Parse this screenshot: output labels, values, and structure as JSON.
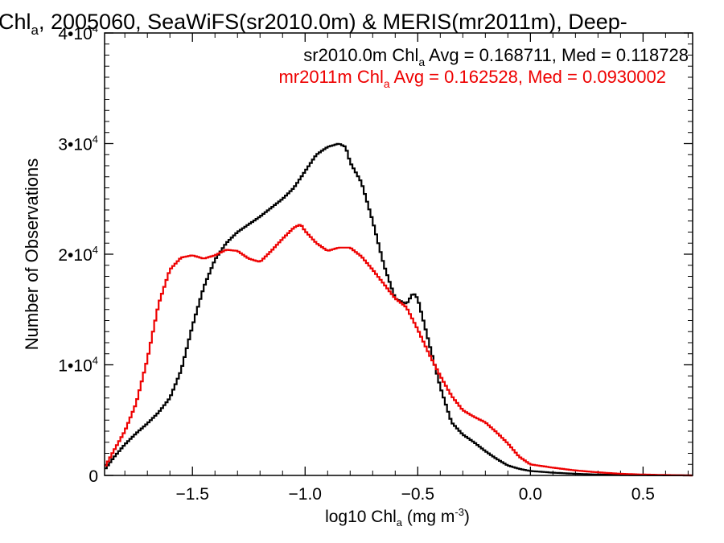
{
  "chart_data": {
    "type": "line",
    "title": {
      "prefix": "Chl",
      "sub": "a",
      "suffix": ", 2005060, SeaWiFS(sr2010.0m) & MERIS(mr2011m), Deep-"
    },
    "xlabel": {
      "prefix": "log10 Chl",
      "sub": "a",
      "mid": " (mg m",
      "sup": "-3",
      "suffix": ")"
    },
    "ylabel": "Number of Observations",
    "xlim": [
      -1.89,
      0.72
    ],
    "ylim": [
      0,
      40000
    ],
    "xticks": [
      {
        "value": -1.5,
        "label": "−1.5"
      },
      {
        "value": -1.0,
        "label": "−1.0"
      },
      {
        "value": -0.5,
        "label": "−0.5"
      },
      {
        "value": 0.0,
        "label": "0.0"
      },
      {
        "value": 0.5,
        "label": "0.5"
      }
    ],
    "yticks": [
      {
        "value": 0,
        "base": "0",
        "exp": ""
      },
      {
        "value": 10000,
        "base": "1•10",
        "exp": "4"
      },
      {
        "value": 20000,
        "base": "2•10",
        "exp": "4"
      },
      {
        "value": 30000,
        "base": "3•10",
        "exp": "4"
      },
      {
        "value": 40000,
        "base": "4•10",
        "exp": "4"
      }
    ],
    "grid": false,
    "legend_position": "top-right",
    "series": [
      {
        "name": "sr2010.0m",
        "color": "#000000",
        "label": {
          "prefix": "sr2010.0m Chl",
          "sub": "a",
          "suffix": " Avg = 0.168711, Med = 0.118728"
        },
        "x": [
          -1.89,
          -1.85,
          -1.8,
          -1.75,
          -1.7,
          -1.65,
          -1.6,
          -1.55,
          -1.5,
          -1.45,
          -1.4,
          -1.35,
          -1.3,
          -1.25,
          -1.2,
          -1.15,
          -1.1,
          -1.05,
          -1.0,
          -0.95,
          -0.9,
          -0.85,
          -0.82,
          -0.8,
          -0.75,
          -0.7,
          -0.65,
          -0.6,
          -0.55,
          -0.52,
          -0.5,
          -0.45,
          -0.4,
          -0.35,
          -0.3,
          -0.25,
          -0.2,
          -0.15,
          -0.1,
          -0.05,
          0.0,
          0.1,
          0.2,
          0.3,
          0.4,
          0.5,
          0.6,
          0.72
        ],
        "y": [
          500,
          1600,
          2800,
          3800,
          4700,
          5700,
          7000,
          9500,
          13500,
          17000,
          19500,
          21000,
          22000,
          22700,
          23400,
          24200,
          25000,
          26000,
          27500,
          29000,
          29700,
          30000,
          29700,
          28300,
          26500,
          23000,
          19000,
          16000,
          15500,
          16500,
          16000,
          12000,
          8000,
          4800,
          3700,
          3000,
          2200,
          1500,
          900,
          600,
          400,
          250,
          150,
          80,
          40,
          20,
          10,
          0
        ]
      },
      {
        "name": "mr2011m",
        "color": "#ee0000",
        "label": {
          "prefix": "mr2011m Chl",
          "sub": "a",
          "suffix": " Avg = 0.162528, Med = 0.0930002"
        },
        "x": [
          -1.89,
          -1.85,
          -1.8,
          -1.75,
          -1.7,
          -1.65,
          -1.6,
          -1.55,
          -1.5,
          -1.45,
          -1.4,
          -1.35,
          -1.3,
          -1.25,
          -1.2,
          -1.15,
          -1.1,
          -1.05,
          -1.02,
          -1.0,
          -0.95,
          -0.9,
          -0.85,
          -0.8,
          -0.75,
          -0.7,
          -0.65,
          -0.6,
          -0.55,
          -0.5,
          -0.45,
          -0.4,
          -0.35,
          -0.3,
          -0.25,
          -0.2,
          -0.15,
          -0.1,
          -0.05,
          0.0,
          0.1,
          0.2,
          0.3,
          0.4,
          0.5,
          0.6,
          0.72
        ],
        "y": [
          700,
          2200,
          4000,
          6500,
          10500,
          15500,
          18600,
          19700,
          19900,
          19600,
          19900,
          20400,
          20300,
          19600,
          19300,
          20300,
          21400,
          22400,
          22700,
          22100,
          21000,
          20300,
          20600,
          20600,
          19800,
          18600,
          17300,
          16000,
          15200,
          13200,
          11000,
          9000,
          7200,
          5900,
          5300,
          4800,
          3900,
          2900,
          1700,
          1000,
          700,
          450,
          280,
          150,
          80,
          40,
          0
        ]
      }
    ]
  }
}
